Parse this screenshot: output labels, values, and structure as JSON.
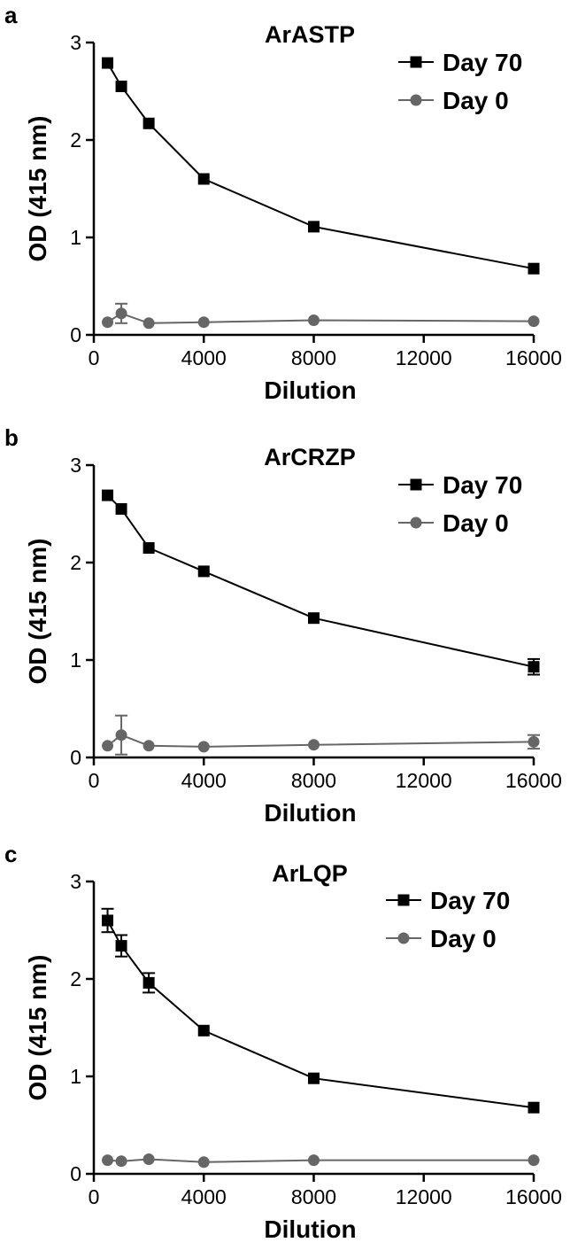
{
  "colors": {
    "day70": "#000000",
    "day0": "#666666"
  },
  "chart_data": [
    {
      "panel": "a",
      "type": "line",
      "title": "ArASTP",
      "xlabel": "Dilution",
      "ylabel": "OD (415 nm)",
      "xlim": [
        0,
        16000
      ],
      "ylim": [
        0,
        3
      ],
      "xticks": [
        0,
        4000,
        8000,
        12000,
        16000
      ],
      "yticks": [
        0,
        1,
        2,
        3
      ],
      "legend_position": "top-right",
      "grid": false,
      "x": [
        500,
        1000,
        2000,
        4000,
        8000,
        16000
      ],
      "series": [
        {
          "name": "Day 70",
          "marker": "square",
          "color": "#000000",
          "values": [
            2.79,
            2.55,
            2.17,
            1.6,
            1.11,
            0.68
          ],
          "errors": [
            0,
            0,
            0,
            0,
            0,
            0
          ]
        },
        {
          "name": "Day 0",
          "marker": "circle",
          "color": "#666666",
          "values": [
            0.13,
            0.22,
            0.12,
            0.13,
            0.15,
            0.14
          ],
          "errors": [
            0,
            0.1,
            0,
            0,
            0,
            0
          ]
        }
      ]
    },
    {
      "panel": "b",
      "type": "line",
      "title": "ArCRZP",
      "xlabel": "Dilution",
      "ylabel": "OD (415 nm)",
      "xlim": [
        0,
        16000
      ],
      "ylim": [
        0,
        3
      ],
      "xticks": [
        0,
        4000,
        8000,
        12000,
        16000
      ],
      "yticks": [
        0,
        1,
        2,
        3
      ],
      "legend_position": "top-right",
      "grid": false,
      "x": [
        500,
        1000,
        2000,
        4000,
        8000,
        16000
      ],
      "series": [
        {
          "name": "Day 70",
          "marker": "square",
          "color": "#000000",
          "values": [
            2.69,
            2.55,
            2.15,
            1.91,
            1.43,
            0.93
          ],
          "errors": [
            0,
            0,
            0,
            0,
            0,
            0.08
          ]
        },
        {
          "name": "Day 0",
          "marker": "circle",
          "color": "#666666",
          "values": [
            0.12,
            0.23,
            0.12,
            0.11,
            0.13,
            0.16
          ],
          "errors": [
            0,
            0.2,
            0,
            0,
            0,
            0.07
          ]
        }
      ]
    },
    {
      "panel": "c",
      "type": "line",
      "title": "ArLQP",
      "xlabel": "Dilution",
      "ylabel": "OD (415 nm)",
      "xlim": [
        0,
        16000
      ],
      "ylim": [
        0,
        3
      ],
      "xticks": [
        0,
        4000,
        8000,
        12000,
        16000
      ],
      "yticks": [
        0,
        1,
        2,
        3
      ],
      "legend_position": "top-right",
      "grid": false,
      "x": [
        500,
        1000,
        2000,
        4000,
        8000,
        16000
      ],
      "series": [
        {
          "name": "Day 70",
          "marker": "square",
          "color": "#000000",
          "values": [
            2.6,
            2.34,
            1.96,
            1.47,
            0.98,
            0.68
          ],
          "errors": [
            0.12,
            0.11,
            0.1,
            0,
            0,
            0
          ]
        },
        {
          "name": "Day 0",
          "marker": "circle",
          "color": "#666666",
          "values": [
            0.14,
            0.13,
            0.15,
            0.12,
            0.14,
            0.14
          ],
          "errors": [
            0,
            0,
            0,
            0,
            0,
            0
          ]
        }
      ]
    }
  ]
}
